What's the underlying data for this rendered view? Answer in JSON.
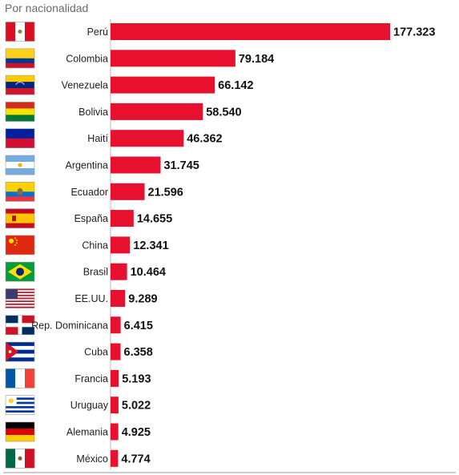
{
  "chart_data": {
    "type": "bar",
    "orientation": "horizontal",
    "title": "Por nacionalidad",
    "categories": [
      "Perú",
      "Colombia",
      "Venezuela",
      "Bolivia",
      "Haití",
      "Argentina",
      "Ecuador",
      "España",
      "China",
      "Brasil",
      "EE.UU.",
      "Rep. Dominicana",
      "Cuba",
      "Francia",
      "Uruguay",
      "Alemania",
      "México"
    ],
    "values": [
      177323,
      79184,
      66142,
      58540,
      46362,
      31745,
      21596,
      14655,
      12341,
      10464,
      9289,
      6415,
      6358,
      5193,
      5022,
      4925,
      4774
    ],
    "value_labels": [
      "177.323",
      "79.184",
      "66.142",
      "58.540",
      "46.362",
      "31.745",
      "21.596",
      "14.655",
      "12.341",
      "10.464",
      "9.289",
      "6.415",
      "6.358",
      "5.193",
      "5.022",
      "4.925",
      "4.774"
    ],
    "flag_icons": [
      "peru-flag-icon",
      "colombia-flag-icon",
      "venezuela-flag-icon",
      "bolivia-flag-icon",
      "haiti-flag-icon",
      "argentina-flag-icon",
      "ecuador-flag-icon",
      "spain-flag-icon",
      "china-flag-icon",
      "brazil-flag-icon",
      "usa-flag-icon",
      "dominican-republic-flag-icon",
      "cuba-flag-icon",
      "france-flag-icon",
      "uruguay-flag-icon",
      "germany-flag-icon",
      "mexico-flag-icon"
    ],
    "bar_color": "#e8102f",
    "xlim": [
      0,
      177323
    ],
    "grid": false,
    "legend": "none"
  }
}
